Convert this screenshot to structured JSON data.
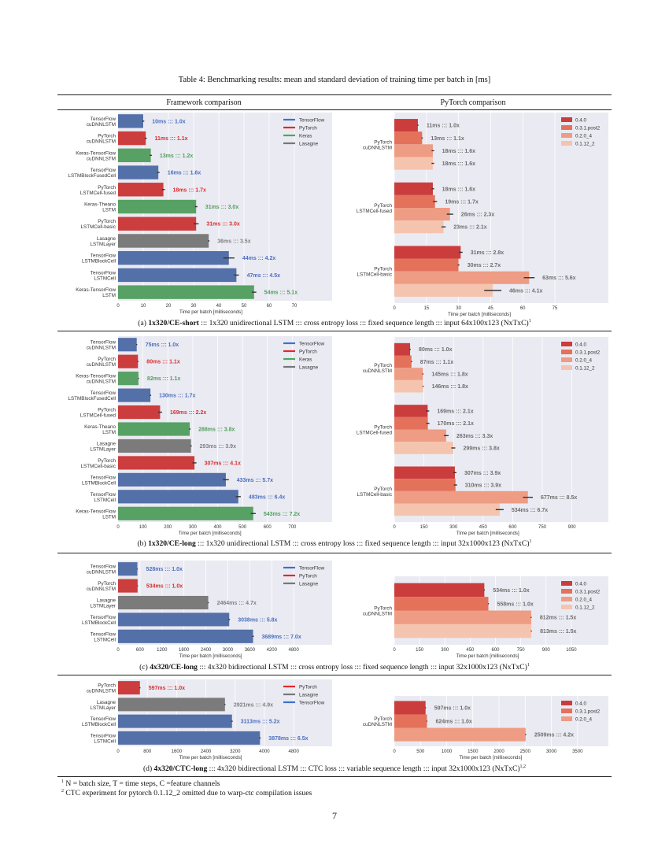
{
  "table_title": "Table 4: Benchmarking results: mean and standard deviation of training time per batch in [ms]",
  "headers": {
    "left": "Framework comparison",
    "right": "PyTorch comparison"
  },
  "captions": [
    {
      "prefix": "(a) ",
      "bold": "1x320/CE-short",
      "rest": " ::: 1x320 unidirectional LSTM ::: cross entropy loss ::: fixed sequence length ::: input 64x100x123 (NxTxC)",
      "sup": "1"
    },
    {
      "prefix": "(b) ",
      "bold": "1x320/CE-long",
      "rest": " ::: 1x320 unidirectional LSTM ::: cross entropy loss ::: fixed sequence length ::: input 32x1000x123 (NxTxC)",
      "sup": "1"
    },
    {
      "prefix": "(c) ",
      "bold": "4x320/CE-long",
      "rest": " ::: 4x320 bidirectional LSTM ::: cross entropy loss ::: fixed sequence length ::: input 32x1000x123 (NxTxC)",
      "sup": "1"
    },
    {
      "prefix": "(d) ",
      "bold": "4x320/CTC-long",
      "rest": " ::: 4x320 bidirectional LSTM ::: CTC loss ::: variable sequence length ::: input 32x1000x123 (NxTxC)",
      "sup": "1,2"
    }
  ],
  "footnotes": [
    {
      "mark": "1",
      "text": " N = batch size, T = time steps, C =feature channels"
    },
    {
      "mark": "2",
      "text": " CTC experiment for pytorch 0.1.12_2 omitted due to warp-ctc compilation issues"
    }
  ],
  "page_number": "7",
  "colors": {
    "TensorFlow": "#5470a8",
    "PyTorch": "#cc3d3d",
    "Keras": "#58a164",
    "Lasagne": "#7b7b7b",
    "legend_TensorFlow": "#3d6fd0",
    "legend_PyTorch": "#e02a2a",
    "legend_Keras": "#4aaa5a",
    "legend_Lasagne": "#777777",
    "label_TensorFlow": "#4a6fc0",
    "label_PyTorch": "#d92f2f",
    "label_Keras": "#4f9f5c",
    "label_Lasagne": "#808080",
    "0.4.0": "#cb3d3d",
    "0.3.1.post2": "#e4715a",
    "0.2.0_4": "#ee9c83",
    "0.1.12_2": "#f5c4ae",
    "plot_bg": "#eaeaf2",
    "grid": "#ffffff",
    "version_label": "#6e6e6e"
  },
  "chart_data": [
    {
      "id": "a-left",
      "type": "bar",
      "orientation": "horizontal",
      "xlabel": "Time per batch [milliseconds]",
      "xlim": [
        0,
        85
      ],
      "xticks": [
        0,
        10,
        20,
        30,
        40,
        50,
        60,
        70
      ],
      "legend": [
        "TensorFlow",
        "PyTorch",
        "Keras",
        "Lasagne"
      ],
      "legend_placement": "top-right",
      "grid": true,
      "bars": [
        {
          "category": [
            "TensorFlow",
            "cuDNNLSTM"
          ],
          "framework": "TensorFlow",
          "value": 10,
          "err": 0.4,
          "label": "10ms ::: 1.0x"
        },
        {
          "category": [
            "PyTorch",
            "cuDNNLSTM"
          ],
          "framework": "PyTorch",
          "value": 11,
          "err": 0.4,
          "label": "11ms ::: 1.1x"
        },
        {
          "category": [
            "Keras-TensorFlow",
            "cuDNNLSTM"
          ],
          "framework": "Keras",
          "value": 13,
          "err": 0.4,
          "label": "13ms ::: 1.2x"
        },
        {
          "category": [
            "TensorFlow",
            "LSTMBlockFusedCell"
          ],
          "framework": "TensorFlow",
          "value": 16,
          "err": 0.5,
          "label": "16ms ::: 1.6x"
        },
        {
          "category": [
            "PyTorch",
            "LSTMCell-fused"
          ],
          "framework": "PyTorch",
          "value": 18,
          "err": 0.6,
          "label": "18ms ::: 1.7x"
        },
        {
          "category": [
            "Keras-Theano",
            "LSTM"
          ],
          "framework": "Keras",
          "value": 31,
          "err": 0.5,
          "label": "31ms ::: 3.0x"
        },
        {
          "category": [
            "PyTorch",
            "LSTMCell-basic"
          ],
          "framework": "PyTorch",
          "value": 31,
          "err": 1.0,
          "label": "31ms ::: 3.0x"
        },
        {
          "category": [
            "Lasagne",
            "LSTMLayer"
          ],
          "framework": "Lasagne",
          "value": 36,
          "err": 0.3,
          "label": "36ms ::: 3.5x"
        },
        {
          "category": [
            "TensorFlow",
            "LSTMBlockCell"
          ],
          "framework": "TensorFlow",
          "value": 44,
          "err": 2.2,
          "label": "44ms ::: 4.2x"
        },
        {
          "category": [
            "TensorFlow",
            "LSTMCell"
          ],
          "framework": "TensorFlow",
          "value": 47,
          "err": 1.0,
          "label": "47ms ::: 4.5x"
        },
        {
          "category": [
            "Keras-TensorFlow",
            "LSTM"
          ],
          "framework": "Keras",
          "value": 54,
          "err": 0.9,
          "label": "54ms ::: 5.1x"
        }
      ]
    },
    {
      "id": "a-right",
      "type": "bar",
      "orientation": "horizontal",
      "xlabel": "Time per batch [milliseconds]",
      "xlim": [
        0,
        100
      ],
      "xticks": [
        0,
        15,
        30,
        45,
        60,
        75
      ],
      "legend": [
        "0.4.0",
        "0.3.1.post2",
        "0.2.0_4",
        "0.1.12_2"
      ],
      "legend_placement": "top-right",
      "grid": true,
      "groups": [
        {
          "category": [
            "PyTorch",
            "cuDNNLSTM"
          ],
          "bars": [
            {
              "version": "0.4.0",
              "value": 11,
              "err": 0.3,
              "label": "11ms ::: 1.0x"
            },
            {
              "version": "0.3.1.post2",
              "value": 13,
              "err": 0.3,
              "label": "13ms ::: 1.1x"
            },
            {
              "version": "0.2.0_4",
              "value": 18,
              "err": 0.6,
              "label": "18ms ::: 1.6x"
            },
            {
              "version": "0.1.12_2",
              "value": 18,
              "err": 0.6,
              "label": "18ms ::: 1.6x"
            }
          ]
        },
        {
          "category": [
            "PyTorch",
            "LSTMCell-fused"
          ],
          "bars": [
            {
              "version": "0.4.0",
              "value": 18,
              "err": 0.6,
              "label": "18ms ::: 1.6x"
            },
            {
              "version": "0.3.1.post2",
              "value": 19,
              "err": 1.0,
              "label": "19ms ::: 1.7x"
            },
            {
              "version": "0.2.0_4",
              "value": 26,
              "err": 1.5,
              "label": "26ms ::: 2.3x"
            },
            {
              "version": "0.1.12_2",
              "value": 23,
              "err": 1.0,
              "label": "23ms ::: 2.1x"
            }
          ]
        },
        {
          "category": [
            "PyTorch",
            "LSTMCell-basic"
          ],
          "bars": [
            {
              "version": "0.4.0",
              "value": 31,
              "err": 0.9,
              "label": "31ms ::: 2.8x"
            },
            {
              "version": "0.3.1.post2",
              "value": 30,
              "err": 0.4,
              "label": "30ms ::: 2.7x"
            },
            {
              "version": "0.2.0_4",
              "value": 63,
              "err": 2.5,
              "label": "63ms ::: 5.6x"
            },
            {
              "version": "0.1.12_2",
              "value": 46,
              "err": 4.0,
              "label": "46ms ::: 4.1x"
            }
          ]
        }
      ]
    },
    {
      "id": "b-left",
      "type": "bar",
      "orientation": "horizontal",
      "xlabel": "Time per batch [milliseconds]",
      "xlim": [
        0,
        860
      ],
      "xticks": [
        0,
        100,
        200,
        300,
        400,
        500,
        600,
        700
      ],
      "legend": [
        "TensorFlow",
        "PyTorch",
        "Keras",
        "Lasagne"
      ],
      "legend_placement": "top-right",
      "grid": true,
      "bars": [
        {
          "category": [
            "TensorFlow",
            "cuDNNLSTM"
          ],
          "framework": "TensorFlow",
          "value": 75,
          "err": 2,
          "label": "75ms ::: 1.0x"
        },
        {
          "category": [
            "PyTorch",
            "cuDNNLSTM"
          ],
          "framework": "PyTorch",
          "value": 80,
          "err": 2,
          "label": "80ms ::: 1.1x"
        },
        {
          "category": [
            "Keras-TensorFlow",
            "cuDNNLSTM"
          ],
          "framework": "Keras",
          "value": 82,
          "err": 2,
          "label": "82ms ::: 1.1x"
        },
        {
          "category": [
            "TensorFlow",
            "LSTMBlockFusedCell"
          ],
          "framework": "TensorFlow",
          "value": 130,
          "err": 3,
          "label": "130ms ::: 1.7x"
        },
        {
          "category": [
            "PyTorch",
            "LSTMCell-fused"
          ],
          "framework": "PyTorch",
          "value": 169,
          "err": 8,
          "label": "169ms ::: 2.2x"
        },
        {
          "category": [
            "Keras-Theano",
            "LSTM"
          ],
          "framework": "Keras",
          "value": 288,
          "err": 3,
          "label": "288ms ::: 3.8x"
        },
        {
          "category": [
            "Lasagne",
            "LSTMLayer"
          ],
          "framework": "Lasagne",
          "value": 293,
          "err": 3,
          "label": "293ms ::: 3.9x"
        },
        {
          "category": [
            "PyTorch",
            "LSTMCell-basic"
          ],
          "framework": "PyTorch",
          "value": 307,
          "err": 8,
          "label": "307ms ::: 4.1x"
        },
        {
          "category": [
            "TensorFlow",
            "LSTMBlockCell"
          ],
          "framework": "TensorFlow",
          "value": 433,
          "err": 12,
          "label": "433ms ::: 5.7x"
        },
        {
          "category": [
            "TensorFlow",
            "LSTMCell"
          ],
          "framework": "TensorFlow",
          "value": 483,
          "err": 10,
          "label": "483ms ::: 6.4x"
        },
        {
          "category": [
            "Keras-TensorFlow",
            "LSTM"
          ],
          "framework": "Keras",
          "value": 543,
          "err": 10,
          "label": "543ms ::: 7.2x"
        }
      ]
    },
    {
      "id": "b-right",
      "type": "bar",
      "orientation": "horizontal",
      "xlabel": "Time per batch [milliseconds]",
      "xlim": [
        0,
        1085
      ],
      "xticks": [
        0,
        150,
        300,
        450,
        600,
        750,
        900
      ],
      "legend": [
        "0.4.0",
        "0.3.1.post2",
        "0.2.0_4",
        "0.1.12_2"
      ],
      "legend_placement": "top-right",
      "grid": true,
      "groups": [
        {
          "category": [
            "PyTorch",
            "cuDNNLSTM"
          ],
          "bars": [
            {
              "version": "0.4.0",
              "value": 80,
              "err": 3,
              "label": "80ms ::: 1.0x"
            },
            {
              "version": "0.3.1.post2",
              "value": 87,
              "err": 3,
              "label": "87ms ::: 1.1x"
            },
            {
              "version": "0.2.0_4",
              "value": 145,
              "err": 3,
              "label": "145ms ::: 1.8x"
            },
            {
              "version": "0.1.12_2",
              "value": 146,
              "err": 3,
              "label": "146ms ::: 1.8x"
            }
          ]
        },
        {
          "category": [
            "PyTorch",
            "LSTMCell-fused"
          ],
          "bars": [
            {
              "version": "0.4.0",
              "value": 169,
              "err": 8,
              "label": "169ms ::: 2.1x"
            },
            {
              "version": "0.3.1.post2",
              "value": 170,
              "err": 8,
              "label": "170ms ::: 2.1x"
            },
            {
              "version": "0.2.0_4",
              "value": 263,
              "err": 12,
              "label": "263ms ::: 3.3x"
            },
            {
              "version": "0.1.12_2",
              "value": 299,
              "err": 10,
              "label": "299ms ::: 3.8x"
            }
          ]
        },
        {
          "category": [
            "PyTorch",
            "LSTMCell-basic"
          ],
          "bars": [
            {
              "version": "0.4.0",
              "value": 307,
              "err": 8,
              "label": "307ms ::: 3.9x"
            },
            {
              "version": "0.3.1.post2",
              "value": 310,
              "err": 8,
              "label": "310ms ::: 3.9x"
            },
            {
              "version": "0.2.0_4",
              "value": 677,
              "err": 25,
              "label": "677ms ::: 8.5x"
            },
            {
              "version": "0.1.12_2",
              "value": 534,
              "err": 20,
              "label": "534ms ::: 6.7x"
            }
          ]
        }
      ]
    },
    {
      "id": "c-left",
      "type": "bar",
      "orientation": "horizontal",
      "xlabel": "Time per batch [milliseconds]",
      "xlim": [
        0,
        5850
      ],
      "xticks": [
        0,
        600,
        1200,
        1800,
        2400,
        3000,
        3600,
        4200,
        4800
      ],
      "legend": [
        "TensorFlow",
        "PyTorch",
        "Lasagne"
      ],
      "legend_placement": "top-right",
      "grid": true,
      "bars": [
        {
          "category": [
            "TensorFlow",
            "cuDNNLSTM"
          ],
          "framework": "TensorFlow",
          "value": 528,
          "err": 10,
          "label": "528ms ::: 1.0x"
        },
        {
          "category": [
            "PyTorch",
            "cuDNNLSTM"
          ],
          "framework": "PyTorch",
          "value": 534,
          "err": 10,
          "label": "534ms ::: 1.0x"
        },
        {
          "category": [
            "Lasagne",
            "LSTMLayer"
          ],
          "framework": "Lasagne",
          "value": 2464,
          "err": 15,
          "label": "2464ms ::: 4.7x"
        },
        {
          "category": [
            "TensorFlow",
            "LSTMBlockCell"
          ],
          "framework": "TensorFlow",
          "value": 3038,
          "err": 20,
          "label": "3038ms ::: 5.8x"
        },
        {
          "category": [
            "TensorFlow",
            "LSTMCell"
          ],
          "framework": "TensorFlow",
          "value": 3689,
          "err": 20,
          "label": "3689ms ::: 7.0x"
        }
      ]
    },
    {
      "id": "c-right",
      "type": "bar",
      "orientation": "horizontal",
      "xlabel": "Time per batch [milliseconds]",
      "xlim": [
        0,
        1270
      ],
      "xticks": [
        0,
        150,
        300,
        450,
        600,
        750,
        900,
        1050
      ],
      "legend": [
        "0.4.0",
        "0.3.1.post2",
        "0.2.0_4",
        "0.1.12_2"
      ],
      "legend_placement": "top-right",
      "grid": true,
      "groups": [
        {
          "category": [
            "PyTorch",
            "cuDNNLSTM"
          ],
          "bars": [
            {
              "version": "0.4.0",
              "value": 534,
              "err": 3,
              "label": "534ms ::: 1.0x"
            },
            {
              "version": "0.3.1.post2",
              "value": 558,
              "err": 3,
              "label": "558ms ::: 1.0x"
            },
            {
              "version": "0.2.0_4",
              "value": 812,
              "err": 3,
              "label": "812ms ::: 1.5x"
            },
            {
              "version": "0.1.12_2",
              "value": 813,
              "err": 3,
              "label": "813ms ::: 1.5x"
            }
          ]
        }
      ]
    },
    {
      "id": "d-left",
      "type": "bar",
      "orientation": "horizontal",
      "xlabel": "Time per batch [milliseconds]",
      "xlim": [
        0,
        5850
      ],
      "xticks": [
        0,
        800,
        1600,
        2400,
        3200,
        4000,
        4800
      ],
      "legend": [
        "PyTorch",
        "Lasagne",
        "TensorFlow"
      ],
      "legend_placement": "top-right",
      "grid": true,
      "bars": [
        {
          "category": [
            "PyTorch",
            "cuDNNLSTM"
          ],
          "framework": "PyTorch",
          "value": 597,
          "err": 15,
          "label": "597ms ::: 1.0x"
        },
        {
          "category": [
            "Lasagne",
            "LSTMLayer"
          ],
          "framework": "Lasagne",
          "value": 2921,
          "err": 15,
          "label": "2921ms ::: 4.9x"
        },
        {
          "category": [
            "TensorFlow",
            "LSTMBlockCell"
          ],
          "framework": "TensorFlow",
          "value": 3113,
          "err": 20,
          "label": "3113ms ::: 5.2x"
        },
        {
          "category": [
            "TensorFlow",
            "LSTMCell"
          ],
          "framework": "TensorFlow",
          "value": 3878,
          "err": 20,
          "label": "3878ms ::: 6.5x"
        }
      ]
    },
    {
      "id": "d-right",
      "type": "bar",
      "orientation": "horizontal",
      "xlabel": "Time per batch [milliseconds]",
      "xlim": [
        0,
        4090
      ],
      "xticks": [
        0,
        500,
        1000,
        1500,
        2000,
        2500,
        3000,
        3500
      ],
      "legend": [
        "0.4.0",
        "0.3.1.post2",
        "0.2.0_4"
      ],
      "legend_placement": "top-right",
      "grid": true,
      "groups": [
        {
          "category": [
            "PyTorch",
            "cuDNNLSTM"
          ],
          "bars": [
            {
              "version": "0.4.0",
              "value": 597,
              "err": 8,
              "label": "597ms ::: 1.0x"
            },
            {
              "version": "0.3.1.post2",
              "value": 624,
              "err": 8,
              "label": "624ms ::: 1.0x"
            },
            {
              "version": "0.2.0_4",
              "value": 2509,
              "err": 10,
              "label": "2509ms ::: 4.2x"
            }
          ]
        }
      ]
    }
  ]
}
